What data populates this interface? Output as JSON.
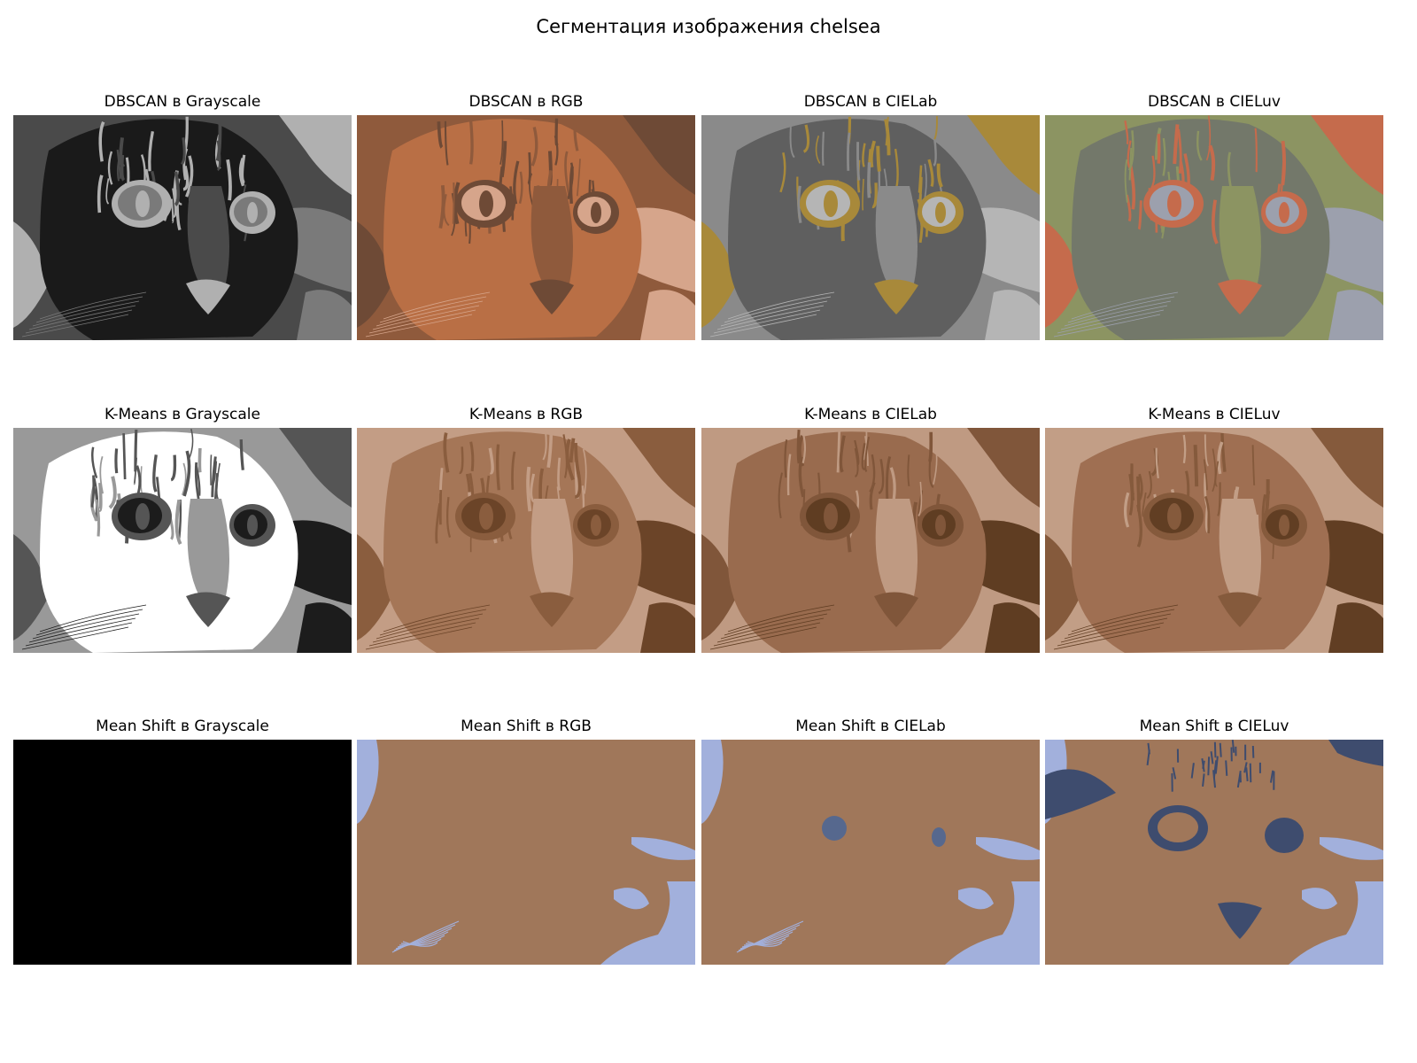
{
  "figure": {
    "title": "Сегментация изображения chelsea"
  },
  "panels": [
    {
      "title": "DBSCAN в Grayscale",
      "palette": [
        "#1a1a1a",
        "#4a4a4a",
        "#7a7a7a",
        "#b0b0b0"
      ],
      "style": "cat"
    },
    {
      "title": "DBSCAN в RGB",
      "palette": [
        "#b96f45",
        "#8f5a3c",
        "#d6a58b",
        "#6e4a36"
      ],
      "style": "cat"
    },
    {
      "title": "DBSCAN в CIELab",
      "palette": [
        "#5f5f5f",
        "#8a8a8a",
        "#b5b5b5",
        "#a8893a"
      ],
      "style": "cat"
    },
    {
      "title": "DBSCAN в CIELuv",
      "palette": [
        "#73786a",
        "#8c9462",
        "#9ca0ad",
        "#c56b4c"
      ],
      "style": "cat"
    },
    {
      "title": "K-Means в Grayscale",
      "palette": [
        "#ffffff",
        "#999999",
        "#1c1c1c",
        "#555555"
      ],
      "style": "cat"
    },
    {
      "title": "K-Means в RGB",
      "palette": [
        "#a57657",
        "#c39d85",
        "#6b4428",
        "#8a5d3e"
      ],
      "style": "cat"
    },
    {
      "title": "K-Means в CIELab",
      "palette": [
        "#996b4e",
        "#bf9a82",
        "#5f3d22",
        "#80563a"
      ],
      "style": "cat"
    },
    {
      "title": "K-Means в CIELuv",
      "palette": [
        "#9f6f52",
        "#c29e86",
        "#613e23",
        "#855a3c"
      ],
      "style": "cat"
    },
    {
      "title": "Mean Shift в Grayscale",
      "palette": [
        "#000000"
      ],
      "style": "flat"
    },
    {
      "title": "Mean Shift в RGB",
      "palette": [
        "#a0775a",
        "#a2b0dc"
      ],
      "style": "shift-rgb"
    },
    {
      "title": "Mean Shift в CIELab",
      "palette": [
        "#a0775a",
        "#a2b0dc",
        "#56688e"
      ],
      "style": "shift-lab"
    },
    {
      "title": "Mean Shift в CIELuv",
      "palette": [
        "#a0775a",
        "#a2b0dc",
        "#3e4c6e"
      ],
      "style": "shift-luv"
    }
  ]
}
